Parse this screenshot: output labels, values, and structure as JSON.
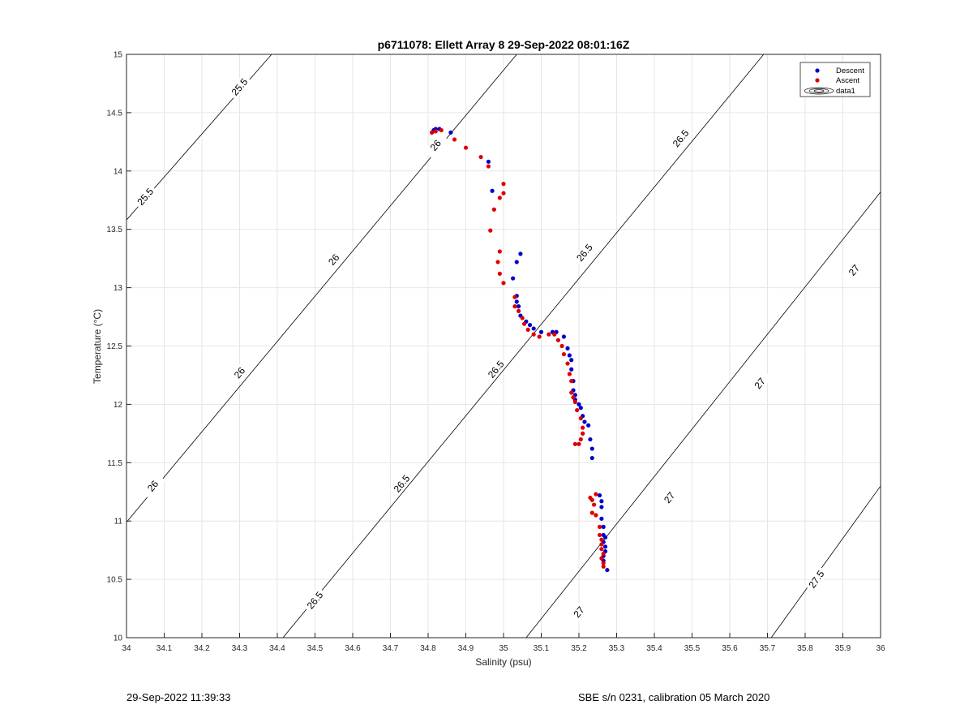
{
  "chart_data": {
    "type": "scatter",
    "title": "p6711078: Ellett Array 8 29-Sep-2022 08:01:16Z",
    "xlabel": "Salinity (psu)",
    "ylabel": "Temperature (°C)",
    "xlim": [
      34,
      36
    ],
    "ylim": [
      10,
      15
    ],
    "xticks": [
      "34",
      "34.1",
      "34.2",
      "34.3",
      "34.4",
      "34.5",
      "34.6",
      "34.7",
      "34.8",
      "34.9",
      "35",
      "35.1",
      "35.2",
      "35.3",
      "35.4",
      "35.5",
      "35.6",
      "35.7",
      "35.8",
      "35.9",
      "36"
    ],
    "yticks": [
      "10",
      "10.5",
      "11",
      "11.5",
      "12",
      "12.5",
      "13",
      "13.5",
      "14",
      "14.5",
      "15"
    ],
    "grid": true,
    "legend_position": "top-right",
    "colors": {
      "descent": "#0000cc",
      "ascent": "#dd0000",
      "contour": "#000000",
      "grid": "#e6e6e6"
    },
    "series": [
      {
        "name": "Descent",
        "points": [
          [
            34.81,
            14.33
          ],
          [
            34.815,
            14.35
          ],
          [
            34.82,
            14.36
          ],
          [
            34.83,
            14.36
          ],
          [
            34.86,
            14.33
          ],
          [
            34.96,
            14.08
          ],
          [
            34.97,
            13.83
          ],
          [
            35.045,
            13.29
          ],
          [
            35.035,
            13.22
          ],
          [
            35.025,
            13.08
          ],
          [
            35.035,
            12.93
          ],
          [
            35.035,
            12.88
          ],
          [
            35.04,
            12.84
          ],
          [
            35.045,
            12.76
          ],
          [
            35.06,
            12.71
          ],
          [
            35.07,
            12.68
          ],
          [
            35.08,
            12.65
          ],
          [
            35.1,
            12.62
          ],
          [
            35.13,
            12.62
          ],
          [
            35.14,
            12.62
          ],
          [
            35.16,
            12.58
          ],
          [
            35.17,
            12.48
          ],
          [
            35.175,
            12.42
          ],
          [
            35.18,
            12.38
          ],
          [
            35.18,
            12.3
          ],
          [
            35.185,
            12.2
          ],
          [
            35.185,
            12.12
          ],
          [
            35.19,
            12.08
          ],
          [
            35.19,
            12.04
          ],
          [
            35.2,
            12.0
          ],
          [
            35.205,
            11.97
          ],
          [
            35.21,
            11.9
          ],
          [
            35.215,
            11.85
          ],
          [
            35.225,
            11.82
          ],
          [
            35.23,
            11.7
          ],
          [
            35.235,
            11.62
          ],
          [
            35.235,
            11.54
          ],
          [
            35.255,
            11.22
          ],
          [
            35.26,
            11.17
          ],
          [
            35.26,
            11.12
          ],
          [
            35.26,
            11.02
          ],
          [
            35.265,
            10.95
          ],
          [
            35.265,
            10.88
          ],
          [
            35.27,
            10.86
          ],
          [
            35.265,
            10.82
          ],
          [
            35.27,
            10.78
          ],
          [
            35.27,
            10.74
          ],
          [
            35.265,
            10.7
          ],
          [
            35.265,
            10.66
          ],
          [
            35.275,
            10.58
          ]
        ]
      },
      {
        "name": "Ascent",
        "points": [
          [
            34.81,
            14.33
          ],
          [
            34.82,
            14.34
          ],
          [
            34.835,
            14.35
          ],
          [
            34.87,
            14.27
          ],
          [
            34.9,
            14.2
          ],
          [
            34.94,
            14.12
          ],
          [
            34.96,
            14.04
          ],
          [
            35.0,
            13.89
          ],
          [
            35.0,
            13.81
          ],
          [
            34.99,
            13.77
          ],
          [
            34.975,
            13.67
          ],
          [
            34.965,
            13.49
          ],
          [
            34.99,
            13.31
          ],
          [
            34.985,
            13.22
          ],
          [
            34.99,
            13.12
          ],
          [
            35.0,
            13.04
          ],
          [
            35.03,
            12.92
          ],
          [
            35.03,
            12.84
          ],
          [
            35.04,
            12.8
          ],
          [
            35.05,
            12.74
          ],
          [
            35.055,
            12.69
          ],
          [
            35.065,
            12.64
          ],
          [
            35.08,
            12.6
          ],
          [
            35.095,
            12.58
          ],
          [
            35.12,
            12.6
          ],
          [
            35.135,
            12.6
          ],
          [
            35.145,
            12.55
          ],
          [
            35.155,
            12.5
          ],
          [
            35.16,
            12.43
          ],
          [
            35.17,
            12.35
          ],
          [
            35.175,
            12.26
          ],
          [
            35.18,
            12.2
          ],
          [
            35.18,
            12.1
          ],
          [
            35.185,
            12.06
          ],
          [
            35.19,
            12.02
          ],
          [
            35.195,
            11.95
          ],
          [
            35.205,
            11.88
          ],
          [
            35.21,
            11.8
          ],
          [
            35.21,
            11.75
          ],
          [
            35.205,
            11.7
          ],
          [
            35.19,
            11.66
          ],
          [
            35.2,
            11.66
          ],
          [
            35.23,
            11.2
          ],
          [
            35.235,
            11.18
          ],
          [
            35.245,
            11.23
          ],
          [
            35.24,
            11.14
          ],
          [
            35.235,
            11.07
          ],
          [
            35.245,
            11.05
          ],
          [
            35.255,
            10.95
          ],
          [
            35.255,
            10.88
          ],
          [
            35.26,
            10.84
          ],
          [
            35.26,
            10.8
          ],
          [
            35.26,
            10.76
          ],
          [
            35.265,
            10.72
          ],
          [
            35.26,
            10.68
          ],
          [
            35.265,
            10.64
          ],
          [
            35.265,
            10.61
          ]
        ]
      },
      {
        "name": "data1",
        "kind": "density_contours"
      }
    ],
    "density_contours": [
      {
        "level": "25.5",
        "from": [
          34.0,
          13.58
        ],
        "to": [
          34.385,
          15.0
        ],
        "labels": [
          [
            34.3,
            14.72
          ],
          [
            34.05,
            13.78
          ]
        ]
      },
      {
        "level": "26",
        "from": [
          34.0,
          10.99
        ],
        "to": [
          35.035,
          15.0
        ],
        "labels": [
          [
            34.82,
            14.22
          ],
          [
            34.55,
            13.24
          ],
          [
            34.3,
            12.27
          ],
          [
            34.07,
            11.3
          ]
        ]
      },
      {
        "level": "26.5",
        "from": [
          34.415,
          10.0
        ],
        "to": [
          35.69,
          15.0
        ],
        "labels": [
          [
            35.47,
            14.28
          ],
          [
            35.215,
            13.3
          ],
          [
            34.98,
            12.3
          ],
          [
            34.73,
            11.32
          ],
          [
            34.5,
            10.32
          ]
        ]
      },
      {
        "level": "27",
        "from": [
          35.06,
          10.0
        ],
        "to": [
          36.0,
          13.82
        ],
        "labels": [
          [
            35.93,
            13.15
          ],
          [
            35.68,
            12.18
          ],
          [
            35.44,
            11.2
          ],
          [
            35.2,
            10.22
          ]
        ]
      },
      {
        "level": "27.5",
        "from": [
          35.71,
          10.0
        ],
        "to": [
          36.0,
          11.3
        ],
        "labels": [
          [
            35.83,
            10.5
          ]
        ]
      }
    ],
    "legend": [
      "Descent",
      "Ascent",
      "data1"
    ]
  },
  "footer": {
    "timestamp": "29-Sep-2022 11:39:33",
    "sensor": "SBE s/n 0231, calibration 05 March 2020"
  }
}
